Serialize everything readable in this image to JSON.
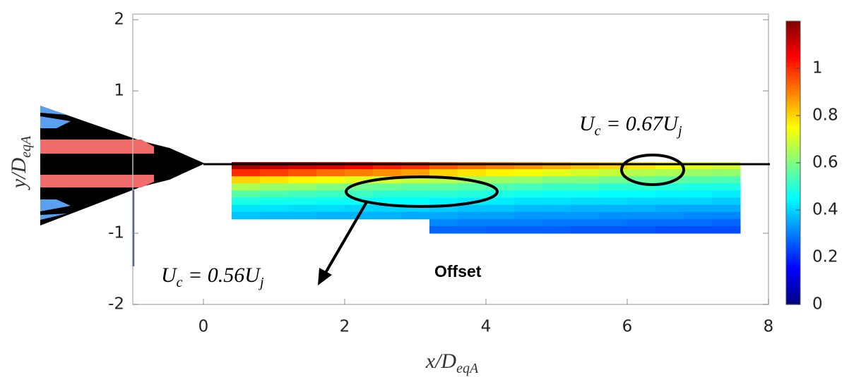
{
  "chart_data": {
    "type": "heatmap",
    "xlabel": {
      "main": "x/D",
      "sub": "eqA"
    },
    "ylabel": {
      "main": "y/D",
      "sub": "eqA"
    },
    "xlim": [
      -1,
      8
    ],
    "xticks": [
      0,
      2,
      4,
      6,
      8
    ],
    "ylim": [
      -2,
      2
    ],
    "yticks": [
      -2,
      -1,
      1,
      2
    ],
    "clim": [
      0,
      1.2
    ],
    "cticks": [
      0,
      0.2,
      0.4,
      0.6,
      0.8,
      1
    ],
    "colormap": "jet",
    "x_edges": [
      0.4,
      0.8,
      1.2,
      1.6,
      2.0,
      2.4,
      2.8,
      3.2,
      3.6,
      4.0,
      4.4,
      4.8,
      5.2,
      5.6,
      6.0,
      6.4,
      6.8,
      7.2,
      7.6
    ],
    "y_edges": [
      0,
      -0.1,
      -0.2,
      -0.3,
      -0.4,
      -0.5,
      -0.6,
      -0.7,
      -0.8,
      -0.9,
      -1.0
    ],
    "values": [
      [
        1.15,
        1.12,
        1.1,
        1.08,
        1.05,
        1.02,
        1.0,
        0.95,
        0.92,
        0.9,
        0.88,
        0.85,
        0.82,
        0.8,
        0.78,
        0.75,
        0.72,
        0.7
      ],
      [
        1.0,
        0.98,
        0.95,
        0.92,
        0.9,
        0.88,
        0.86,
        0.8,
        0.78,
        0.76,
        0.74,
        0.72,
        0.7,
        0.68,
        0.66,
        0.65,
        0.63,
        0.62
      ],
      [
        0.8,
        0.78,
        0.76,
        0.74,
        0.72,
        0.7,
        0.68,
        0.66,
        0.64,
        0.63,
        0.62,
        0.6,
        0.6,
        0.58,
        0.57,
        0.56,
        0.55,
        0.54
      ],
      [
        0.65,
        0.63,
        0.62,
        0.6,
        0.58,
        0.57,
        0.56,
        0.56,
        0.55,
        0.54,
        0.53,
        0.52,
        0.52,
        0.5,
        0.5,
        0.49,
        0.48,
        0.48
      ],
      [
        0.55,
        0.54,
        0.53,
        0.52,
        0.52,
        0.5,
        0.5,
        0.5,
        0.49,
        0.48,
        0.47,
        0.46,
        0.46,
        0.45,
        0.45,
        0.44,
        0.44,
        0.43
      ],
      [
        0.48,
        0.47,
        0.47,
        0.46,
        0.46,
        0.45,
        0.45,
        0.44,
        0.43,
        0.43,
        0.42,
        0.42,
        0.41,
        0.41,
        0.4,
        0.4,
        0.4,
        0.39
      ],
      [
        0.42,
        0.42,
        0.41,
        0.41,
        0.4,
        0.4,
        0.4,
        0.39,
        0.38,
        0.38,
        0.37,
        0.37,
        0.36,
        0.36,
        0.36,
        0.35,
        0.35,
        0.35
      ],
      [
        0.38,
        0.37,
        0.37,
        0.36,
        0.36,
        0.36,
        0.35,
        0.35,
        0.34,
        0.34,
        0.33,
        0.33,
        0.33,
        0.32,
        0.32,
        0.32,
        0.31,
        0.31
      ],
      [
        null,
        null,
        null,
        null,
        null,
        null,
        null,
        0.31,
        0.3,
        0.3,
        0.3,
        0.29,
        0.29,
        0.29,
        0.28,
        0.28,
        0.28,
        0.27
      ],
      [
        null,
        null,
        null,
        null,
        null,
        null,
        null,
        0.27,
        0.27,
        0.26,
        0.26,
        0.26,
        0.25,
        0.25,
        0.25,
        0.24,
        0.24,
        0.24
      ]
    ],
    "annotations": [
      {
        "parts": [
          "U",
          "c",
          " = 0.67U",
          "j"
        ]
      },
      {
        "parts": [
          "U",
          "c",
          " = 0.56U",
          "j"
        ]
      },
      {
        "text": "Offset"
      }
    ]
  }
}
